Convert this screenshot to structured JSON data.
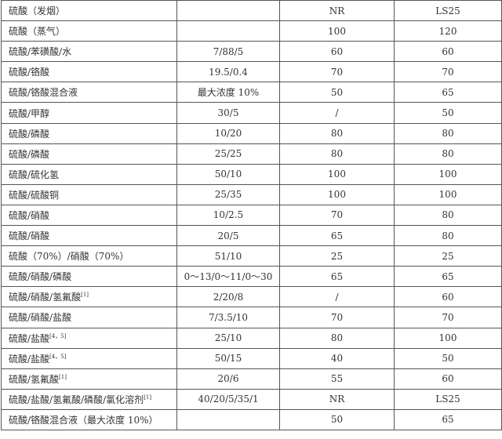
{
  "rows": [
    {
      "name": "硫酸（发烟）",
      "ratio": "",
      "nr": "NR",
      "ls25": "LS25",
      "sup": ""
    },
    {
      "name": "硫酸（蒸气）",
      "ratio": "",
      "nr": "100",
      "ls25": "120",
      "sup": ""
    },
    {
      "name": "硫酸/苯磺酸/水",
      "ratio": "7/88/5",
      "nr": "60",
      "ls25": "60",
      "sup": ""
    },
    {
      "name": "硫酸/铬酸",
      "ratio": "19.5/0.4",
      "nr": "70",
      "ls25": "70",
      "sup": ""
    },
    {
      "name": "硫酸/铬酸混合液",
      "ratio": "最大浓度 10%",
      "nr": "50",
      "ls25": "65",
      "sup": ""
    },
    {
      "name": "硫酸/甲醇",
      "ratio": "30/5",
      "nr": "/",
      "ls25": "50",
      "sup": ""
    },
    {
      "name": "硫酸/磷酸",
      "ratio": "10/20",
      "nr": "80",
      "ls25": "80",
      "sup": ""
    },
    {
      "name": "硫酸/磷酸",
      "ratio": "25/25",
      "nr": "80",
      "ls25": "80",
      "sup": ""
    },
    {
      "name": "硫酸/硫化氢",
      "ratio": "50/10",
      "nr": "100",
      "ls25": "100",
      "sup": ""
    },
    {
      "name": "硫酸/硫酸铜",
      "ratio": "25/35",
      "nr": "100",
      "ls25": "100",
      "sup": ""
    },
    {
      "name": "硫酸/硝酸",
      "ratio": "10/2.5",
      "nr": "70",
      "ls25": "80",
      "sup": ""
    },
    {
      "name": "硫酸/硝酸",
      "ratio": "20/5",
      "nr": "65",
      "ls25": "80",
      "sup": ""
    },
    {
      "name": "硫酸（70%）/硝酸（70%）",
      "ratio": "51/10",
      "nr": "25",
      "ls25": "25",
      "sup": ""
    },
    {
      "name": "硫酸/硝酸/磷酸",
      "ratio": "0～13/0～11/0～30",
      "nr": "65",
      "ls25": "65",
      "sup": ""
    },
    {
      "name": "硫酸/硝酸/氢氟酸",
      "ratio": "2/20/8",
      "nr": "/",
      "ls25": "60",
      "sup": "[1]"
    },
    {
      "name": "硫酸/硝酸/盐酸",
      "ratio": "7/3.5/10",
      "nr": "70",
      "ls25": "70",
      "sup": ""
    },
    {
      "name": "硫酸/盐酸",
      "ratio": "25/10",
      "nr": "80",
      "ls25": "100",
      "sup": "[4，5]"
    },
    {
      "name": "硫酸/盐酸",
      "ratio": "50/15",
      "nr": "40",
      "ls25": "50",
      "sup": "[4，5]"
    },
    {
      "name": "硫酸/氢氟酸",
      "ratio": "20/6",
      "nr": "55",
      "ls25": "60",
      "sup": "[1]"
    },
    {
      "name": "硫酸/盐酸/氢氟酸/磷酸/氯化溶剂",
      "ratio": "40/20/5/35/1",
      "nr": "NR",
      "ls25": "LS25",
      "sup": "[1]"
    },
    {
      "name": "硫酸/铬酸混合液（最大浓度 10%）",
      "ratio": "",
      "nr": "50",
      "ls25": "65",
      "sup": ""
    }
  ]
}
